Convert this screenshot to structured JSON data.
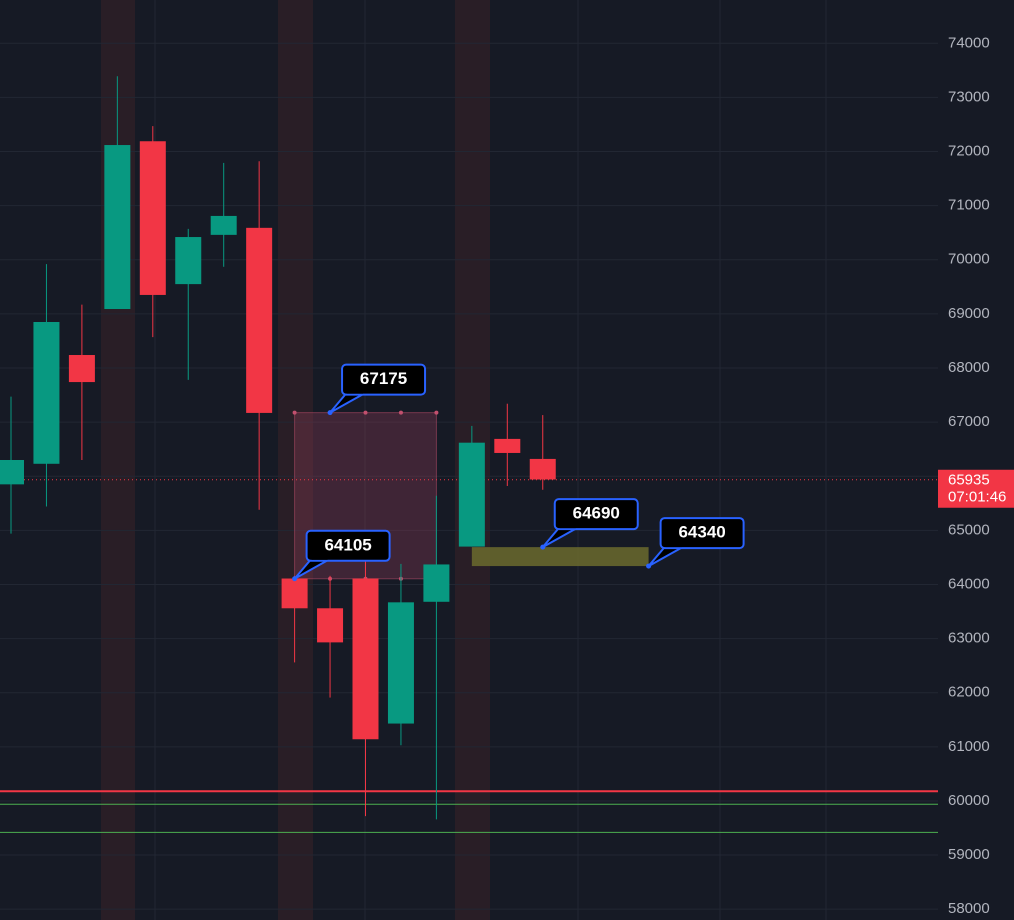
{
  "chart_data": {
    "type": "candlestick",
    "categories": [
      null,
      null,
      null,
      null,
      null,
      null,
      null,
      null,
      null,
      null,
      null,
      null,
      null,
      null,
      null,
      null
    ],
    "open": [
      65850,
      66230,
      68240,
      69090,
      72190,
      69550,
      70460,
      70590,
      64110,
      63560,
      64110,
      61430,
      63680,
      64700,
      66690,
      66320
    ],
    "high": [
      67470,
      69920,
      69170,
      73390,
      72470,
      70570,
      71790,
      71820,
      64160,
      64160,
      64570,
      64380,
      65640,
      66930,
      67340,
      67130
    ],
    "low": [
      64940,
      65440,
      66300,
      69090,
      68570,
      67780,
      69870,
      65380,
      62560,
      61910,
      59720,
      61030,
      59660,
      64700,
      65820,
      65750
    ],
    "close": [
      66300,
      68850,
      67740,
      72120,
      69350,
      70420,
      70810,
      67170,
      63560,
      62930,
      61140,
      63670,
      64370,
      66620,
      66430,
      65940
    ],
    "up_color": "#089981",
    "down_color": "#f23645",
    "ylim": [
      57800,
      74800
    ],
    "yticks": [
      58000,
      59000,
      60000,
      61000,
      62000,
      63000,
      64000,
      65000,
      66000,
      67000,
      68000,
      69000,
      70000,
      71000,
      72000,
      73000,
      74000
    ],
    "grid": true,
    "last_price": 65935,
    "countdown": "07:01:46",
    "levels": [
      {
        "value": 60180,
        "color": "#f23645"
      },
      {
        "value": 59940,
        "color": "#4caf50"
      },
      {
        "value": 59420,
        "color": "#4caf50"
      }
    ],
    "box": {
      "top": 67175,
      "bottom": 64105
    },
    "zone": {
      "top": 64690,
      "bottom": 64340
    },
    "price_labels": [
      67175,
      64105,
      64690,
      64340
    ]
  }
}
